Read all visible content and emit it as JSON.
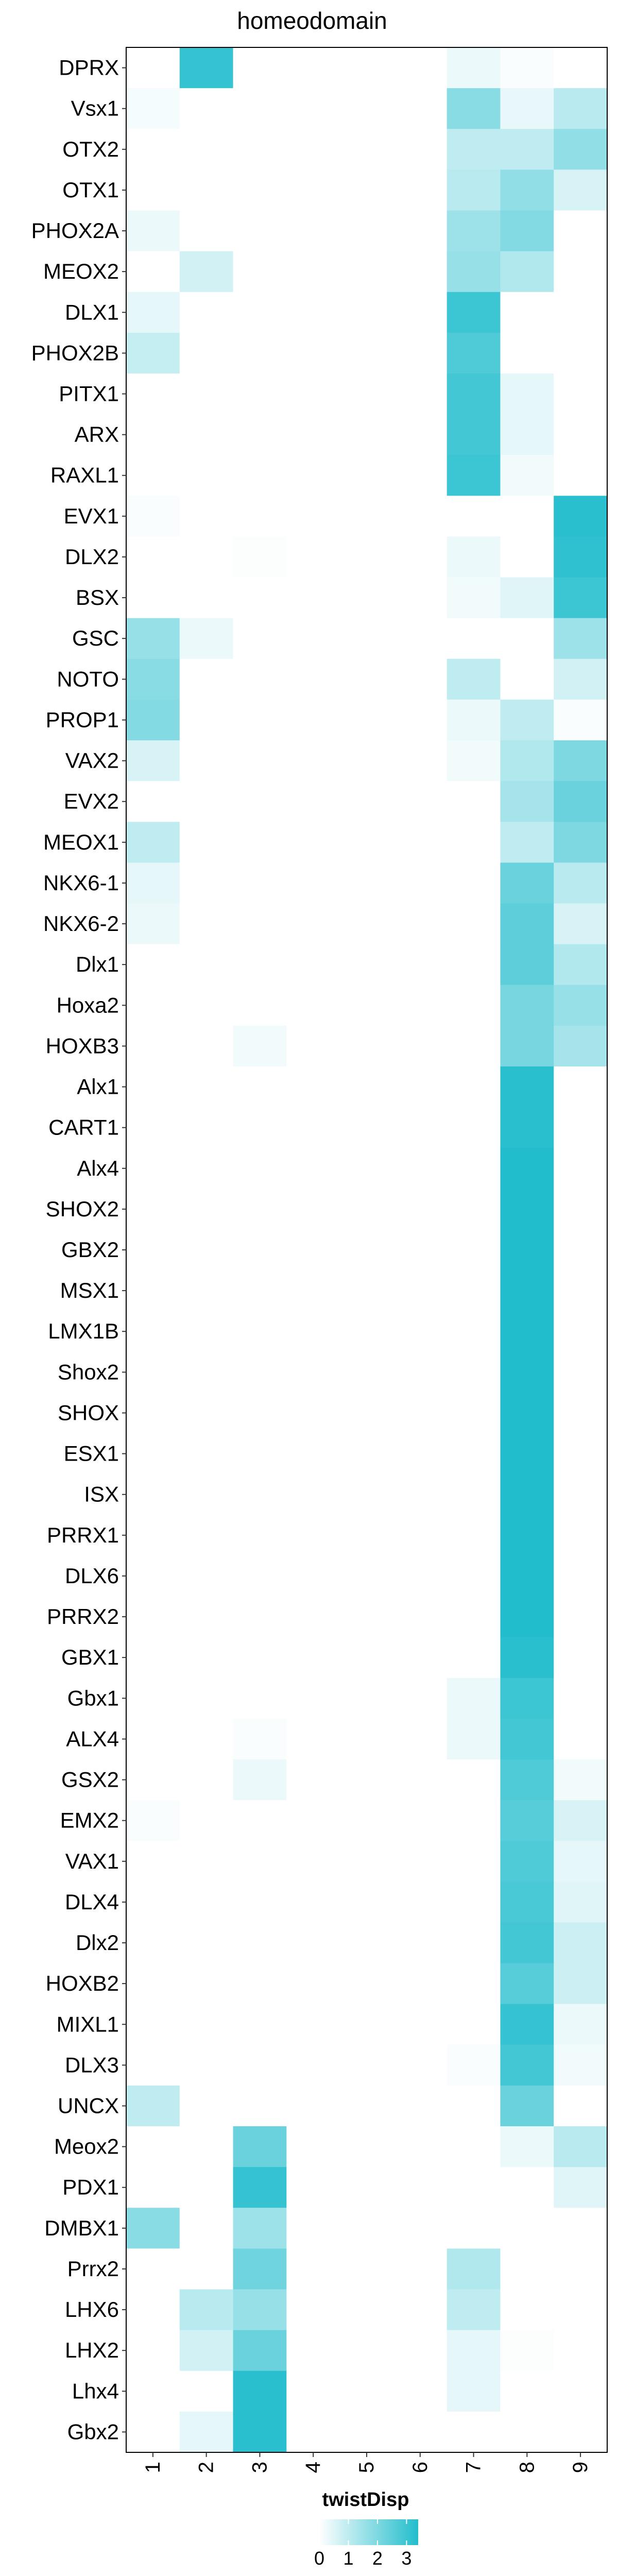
{
  "chart_data": {
    "type": "heatmap",
    "title": "homeodomain",
    "rows": [
      "DPRX",
      "Vsx1",
      "OTX2",
      "OTX1",
      "PHOX2A",
      "MEOX2",
      "DLX1",
      "PHOX2B",
      "PITX1",
      "ARX",
      "RAXL1",
      "EVX1",
      "DLX2",
      "BSX",
      "GSC",
      "NOTO",
      "PROP1",
      "VAX2",
      "EVX2",
      "MEOX1",
      "NKX6-1",
      "NKX6-2",
      "Dlx1",
      "Hoxa2",
      "HOXB3",
      "Alx1",
      "CART1",
      "Alx4",
      "SHOX2",
      "GBX2",
      "MSX1",
      "LMX1B",
      "Shox2",
      "SHOX",
      "ESX1",
      "ISX",
      "PRRX1",
      "DLX6",
      "PRRX2",
      "GBX1",
      "Gbx1",
      "ALX4",
      "GSX2",
      "EMX2",
      "VAX1",
      "DLX4",
      "Dlx2",
      "HOXB2",
      "MIXL1",
      "DLX3",
      "UNCX",
      "Meox2",
      "PDX1",
      "DMBX1",
      "Prrx2",
      "LHX6",
      "LHX2",
      "Lhx4",
      "Gbx2"
    ],
    "columns": [
      "1",
      "2",
      "3",
      "4",
      "5",
      "6",
      "7",
      "8",
      "9"
    ],
    "values": [
      [
        0,
        3.1,
        0,
        0,
        0,
        0,
        0.3,
        0.1,
        0
      ],
      [
        0.15,
        0,
        0,
        0,
        0,
        0,
        1.8,
        0.35,
        1.1
      ],
      [
        0,
        0,
        0,
        0,
        0,
        0,
        1.0,
        1.0,
        1.7
      ],
      [
        0,
        0,
        0,
        0,
        0,
        0,
        1.1,
        1.7,
        0.6
      ],
      [
        0.3,
        0,
        0,
        0,
        0,
        0,
        1.5,
        1.9,
        0
      ],
      [
        0,
        0.7,
        0,
        0,
        0,
        0,
        1.6,
        1.2,
        0
      ],
      [
        0.4,
        0,
        0,
        0,
        0,
        0,
        3.0,
        0,
        0
      ],
      [
        0.9,
        0,
        0,
        0,
        0,
        0,
        2.7,
        0,
        0
      ],
      [
        0,
        0,
        0,
        0,
        0,
        0,
        2.9,
        0.4,
        0
      ],
      [
        0,
        0,
        0,
        0,
        0,
        0,
        2.9,
        0.4,
        0
      ],
      [
        0,
        0,
        0,
        0,
        0,
        0,
        3.0,
        0.2,
        0
      ],
      [
        0.1,
        0,
        0,
        0,
        0,
        0,
        0,
        0,
        3.3
      ],
      [
        0,
        0,
        0.05,
        0,
        0,
        0,
        0.3,
        0,
        3.2
      ],
      [
        0,
        0,
        0,
        0,
        0,
        0,
        0.2,
        0.5,
        3.0
      ],
      [
        1.6,
        0.3,
        0,
        0,
        0,
        0,
        0,
        0,
        1.5
      ],
      [
        1.8,
        0,
        0,
        0,
        0,
        0,
        1.0,
        0,
        0.7
      ],
      [
        1.9,
        0,
        0,
        0,
        0,
        0,
        0.3,
        1.0,
        0.1
      ],
      [
        0.6,
        0,
        0,
        0,
        0,
        0,
        0.2,
        1.2,
        2.0
      ],
      [
        0,
        0,
        0,
        0,
        0,
        0,
        0,
        1.4,
        2.3
      ],
      [
        1.0,
        0,
        0,
        0,
        0,
        0,
        0,
        1.0,
        2.0
      ],
      [
        0.4,
        0,
        0,
        0,
        0,
        0,
        0,
        2.3,
        1.1
      ],
      [
        0.3,
        0,
        0,
        0,
        0,
        0,
        0,
        2.5,
        0.6
      ],
      [
        0,
        0,
        0,
        0,
        0,
        0,
        0,
        2.5,
        1.2
      ],
      [
        0,
        0,
        0,
        0,
        0,
        0,
        0,
        2.1,
        1.6
      ],
      [
        0,
        0,
        0.2,
        0,
        0,
        0,
        0,
        2.1,
        1.4
      ],
      [
        0,
        0,
        0,
        0,
        0,
        0,
        0,
        3.3,
        0
      ],
      [
        0,
        0,
        0,
        0,
        0,
        0,
        0,
        3.3,
        0
      ],
      [
        0,
        0,
        0,
        0,
        0,
        0,
        0,
        3.4,
        0
      ],
      [
        0,
        0,
        0,
        0,
        0,
        0,
        0,
        3.4,
        0
      ],
      [
        0,
        0,
        0,
        0,
        0,
        0,
        0,
        3.4,
        0
      ],
      [
        0,
        0,
        0,
        0,
        0,
        0,
        0,
        3.4,
        0
      ],
      [
        0,
        0,
        0,
        0,
        0,
        0,
        0,
        3.4,
        0
      ],
      [
        0,
        0,
        0,
        0,
        0,
        0,
        0,
        3.4,
        0
      ],
      [
        0,
        0,
        0,
        0,
        0,
        0,
        0,
        3.4,
        0
      ],
      [
        0,
        0,
        0,
        0,
        0,
        0,
        0,
        3.4,
        0
      ],
      [
        0,
        0,
        0,
        0,
        0,
        0,
        0,
        3.4,
        0
      ],
      [
        0,
        0,
        0,
        0,
        0,
        0,
        0,
        3.4,
        0
      ],
      [
        0,
        0,
        0,
        0,
        0,
        0,
        0,
        3.4,
        0
      ],
      [
        0,
        0,
        0,
        0,
        0,
        0,
        0,
        3.4,
        0
      ],
      [
        0,
        0,
        0,
        0,
        0,
        0,
        0,
        3.3,
        0
      ],
      [
        0,
        0,
        0,
        0,
        0,
        0,
        0.3,
        3.0,
        0
      ],
      [
        0,
        0,
        0.1,
        0,
        0,
        0,
        0.3,
        2.9,
        0
      ],
      [
        0,
        0,
        0.3,
        0,
        0,
        0,
        0,
        2.7,
        0.2
      ],
      [
        0.1,
        0,
        0,
        0,
        0,
        0,
        0,
        2.6,
        0.6
      ],
      [
        0,
        0,
        0,
        0,
        0,
        0,
        0,
        2.7,
        0.4
      ],
      [
        0,
        0,
        0,
        0,
        0,
        0,
        0,
        2.8,
        0.5
      ],
      [
        0,
        0,
        0,
        0,
        0,
        0,
        0,
        2.9,
        0.8
      ],
      [
        0,
        0,
        0,
        0,
        0,
        0,
        0,
        2.6,
        0.8
      ],
      [
        0,
        0,
        0,
        0,
        0,
        0,
        0,
        3.1,
        0.3
      ],
      [
        0,
        0,
        0,
        0,
        0,
        0,
        0.1,
        2.9,
        0.2
      ],
      [
        1.0,
        0,
        0,
        0,
        0,
        0,
        0,
        2.3,
        0
      ],
      [
        0,
        0,
        2.3,
        0,
        0,
        0,
        0,
        0.3,
        1.1
      ],
      [
        0,
        0,
        3.1,
        0,
        0,
        0,
        0,
        0,
        0.5
      ],
      [
        1.8,
        0,
        1.5,
        0,
        0,
        0,
        0,
        0,
        0
      ],
      [
        0,
        0,
        2.2,
        0,
        0,
        0,
        1.2,
        0,
        0
      ],
      [
        0,
        1.1,
        1.6,
        0,
        0,
        0,
        1.0,
        0,
        0
      ],
      [
        0,
        0.7,
        2.3,
        0,
        0,
        0,
        0.4,
        0.05,
        0
      ],
      [
        0,
        0,
        3.3,
        0,
        0,
        0,
        0.4,
        0,
        0
      ],
      [
        0,
        0.4,
        3.3,
        0,
        0,
        0,
        0,
        0,
        0
      ]
    ],
    "color_scale": {
      "low": "#ffffff",
      "high": "#22bdcc",
      "min": 0,
      "max": 3.4
    },
    "legend": {
      "title": "twistDisp",
      "ticks": [
        "0",
        "1",
        "2",
        "3"
      ],
      "tick_values": [
        0,
        1,
        2,
        3
      ],
      "position": "bottom"
    }
  }
}
